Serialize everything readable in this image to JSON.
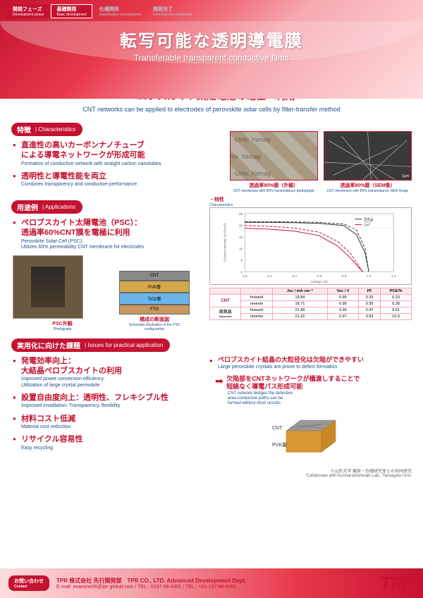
{
  "phases": {
    "p1": {
      "jp": "開発フェーズ",
      "en": "Development phase"
    },
    "p2": {
      "jp": "基礎開発",
      "en": "Basic development"
    },
    "p3": {
      "jp": "仕様開発",
      "en": "Specification development"
    },
    "p4": {
      "jp": "開発完了",
      "en": "Development completion"
    }
  },
  "title": {
    "jp": "転写可能な透明導電膜",
    "en": "Transferable transparent conductive films"
  },
  "subtitle": {
    "jp1": "膜転写技術によりCNTネットワークを",
    "jp2": "ペロブスカイト太陽電池の電極へ利用",
    "en": "CNT networks can be applied to electrodes of perovskite solar cells by filter-transfer method"
  },
  "sections": {
    "char": {
      "jp": "特徴",
      "en": "Characteristics"
    },
    "app": {
      "jp": "用途例",
      "en": "Applications"
    },
    "issues": {
      "jp": "実用化に向けた課題",
      "en": "Issues for practical application"
    }
  },
  "char_bullets": [
    {
      "jp": "直進性の高いカーボンナノチューブ\nによる導電ネットワークが形成可能",
      "en": "Formation of conductive network with straight carbon nanotubes"
    },
    {
      "jp": "透明性と導電性能を両立",
      "en": "Combines transparency and conductive performance"
    }
  ],
  "char_figs": {
    "left": {
      "jp": "透過率80%膜（外観）",
      "en": "CNT membrane with 80% transmittance photograph"
    },
    "right": {
      "jp": "透過率80%膜（SEM像）",
      "en": "CNT membrane with 80% transmittance SEM image"
    },
    "scale": "1μm",
    "watermark": "-Univ. Yamag"
  },
  "app_bullet": {
    "jp": "ペロブスカイト太陽電池（PSC）：\n透過率60%CNT膜を電極に利用",
    "en": "Perovskite Solar Cell (PSC):\nUtilizes 60% permeability CNT membrane for electrodes"
  },
  "app_figs": {
    "psc": {
      "jp": "PSC外観",
      "en": "Photograph"
    },
    "stack": {
      "jp": "構成の断面図",
      "en": "Schematic illustration of the PSC configuration"
    },
    "layers": [
      {
        "name": "CNT",
        "color": "#8a8a8a"
      },
      {
        "name": "PVK層",
        "color": "#d4a84a"
      },
      {
        "name": "TiO2層",
        "color": "#6ab4e8"
      },
      {
        "name": "FTO",
        "color": "#c89860"
      }
    ]
  },
  "chart": {
    "title_jp": "・特性",
    "title_en": "Characteristics",
    "xlabel": "Voltage (V)",
    "ylabel": "Current density (mA/cm²)",
    "xlim": [
      0,
      1.2
    ],
    "ylim": [
      0,
      25
    ],
    "xtick": 0.2,
    "ytick": 5,
    "legend": [
      {
        "label_jp": "改良品",
        "label_en": "Improved",
        "color": "#333333"
      },
      {
        "label": "CNT",
        "color": "#c41230"
      }
    ],
    "series": {
      "improved_fwd": {
        "color": "#333333",
        "dash": "4,2",
        "pts": [
          [
            0,
            21.5
          ],
          [
            0.2,
            21.5
          ],
          [
            0.4,
            21.4
          ],
          [
            0.6,
            21.2
          ],
          [
            0.8,
            20.5
          ],
          [
            0.9,
            18
          ],
          [
            0.97,
            10
          ],
          [
            1.0,
            0
          ]
        ]
      },
      "improved_rev": {
        "color": "#333333",
        "dash": "none",
        "pts": [
          [
            0,
            21.2
          ],
          [
            0.2,
            21.2
          ],
          [
            0.4,
            21.1
          ],
          [
            0.6,
            20.8
          ],
          [
            0.8,
            19.8
          ],
          [
            0.9,
            16
          ],
          [
            0.97,
            8
          ],
          [
            1.0,
            0
          ]
        ]
      },
      "cnt_fwd": {
        "color": "#c41230",
        "dash": "4,2",
        "pts": [
          [
            0,
            19.9
          ],
          [
            0.2,
            19.5
          ],
          [
            0.4,
            18.8
          ],
          [
            0.6,
            17
          ],
          [
            0.75,
            13
          ],
          [
            0.85,
            8
          ],
          [
            0.95,
            0
          ]
        ]
      },
      "cnt_rev": {
        "color": "#c41230",
        "dash": "none",
        "pts": [
          [
            0,
            18.7
          ],
          [
            0.2,
            18.3
          ],
          [
            0.4,
            17.5
          ],
          [
            0.6,
            15.5
          ],
          [
            0.75,
            11
          ],
          [
            0.85,
            6
          ],
          [
            0.95,
            0
          ]
        ]
      }
    }
  },
  "table": {
    "headers": [
      "",
      "",
      "Jsc / mA·cm⁻²",
      "Voc / V",
      "FF",
      "PCE/%"
    ],
    "rows": [
      {
        "label": "CNT",
        "cls": "cnt",
        "dir": "forward",
        "vals": [
          "19.94",
          "0.95",
          "0.33",
          "6.23"
        ]
      },
      {
        "label": "",
        "cls": "cnt",
        "dir": "reverse",
        "vals": [
          "18.71",
          "0.95",
          "0.35",
          "6.28"
        ]
      },
      {
        "label": "改良品",
        "sub": "Improved",
        "cls": "imp",
        "dir": "forward",
        "vals": [
          "21.49",
          "0.96",
          "0.47",
          "9.61"
        ]
      },
      {
        "label": "",
        "cls": "imp",
        "dir": "reverse",
        "vals": [
          "21.22",
          "0.97",
          "0.53",
          "10.9"
        ]
      }
    ]
  },
  "issues_bullets": [
    {
      "jp": "発電効率向上：\n大結晶ペロブスカイトの利用",
      "en": "Improved power conversion efficiency:\nUtilization of large crystal perovskite"
    },
    {
      "jp": "設置自由度向上：透明性、フレキシブル性",
      "en": "Improved installation: Transparency, flexibility"
    },
    {
      "jp": "材料コスト低減",
      "en": "Material cost reduction"
    },
    {
      "jp": "リサイクル容易性",
      "en": "Easy recycling"
    }
  ],
  "issues_right": {
    "b1": {
      "jp": "ペロブスカイト結晶の大粒径化は欠陥ができやすい",
      "en": "Large perovskite crystals are prone to defect formation"
    },
    "b2": {
      "jp": "欠陥部をCNTネットワークが橋渡しすることで\n短絡なく導電パス形成可能",
      "en": "CNT network bridges the defective\narea conductive paths can be\nformed without short circuits."
    },
    "cube_labels": {
      "cnt": "CNT",
      "pvk": "PVK層"
    }
  },
  "collab": "※山形大学 栗原・石崎研究室との共同研究\nCollaborate with Kurihara&Ishizaki Lab., Yamagata Univ.",
  "footer": {
    "contact": {
      "jp": "お問い合わせ",
      "en": "Contact"
    },
    "company": "TPR 株式会社 先行開発部　TPR CO., LTD. Advanced Development Dept.",
    "details": "E-mail: examine06@tpr-global.com / TEL.: 0237-86-4301 / TEL.: +81-237-86-4301",
    "logo": "TPR"
  }
}
